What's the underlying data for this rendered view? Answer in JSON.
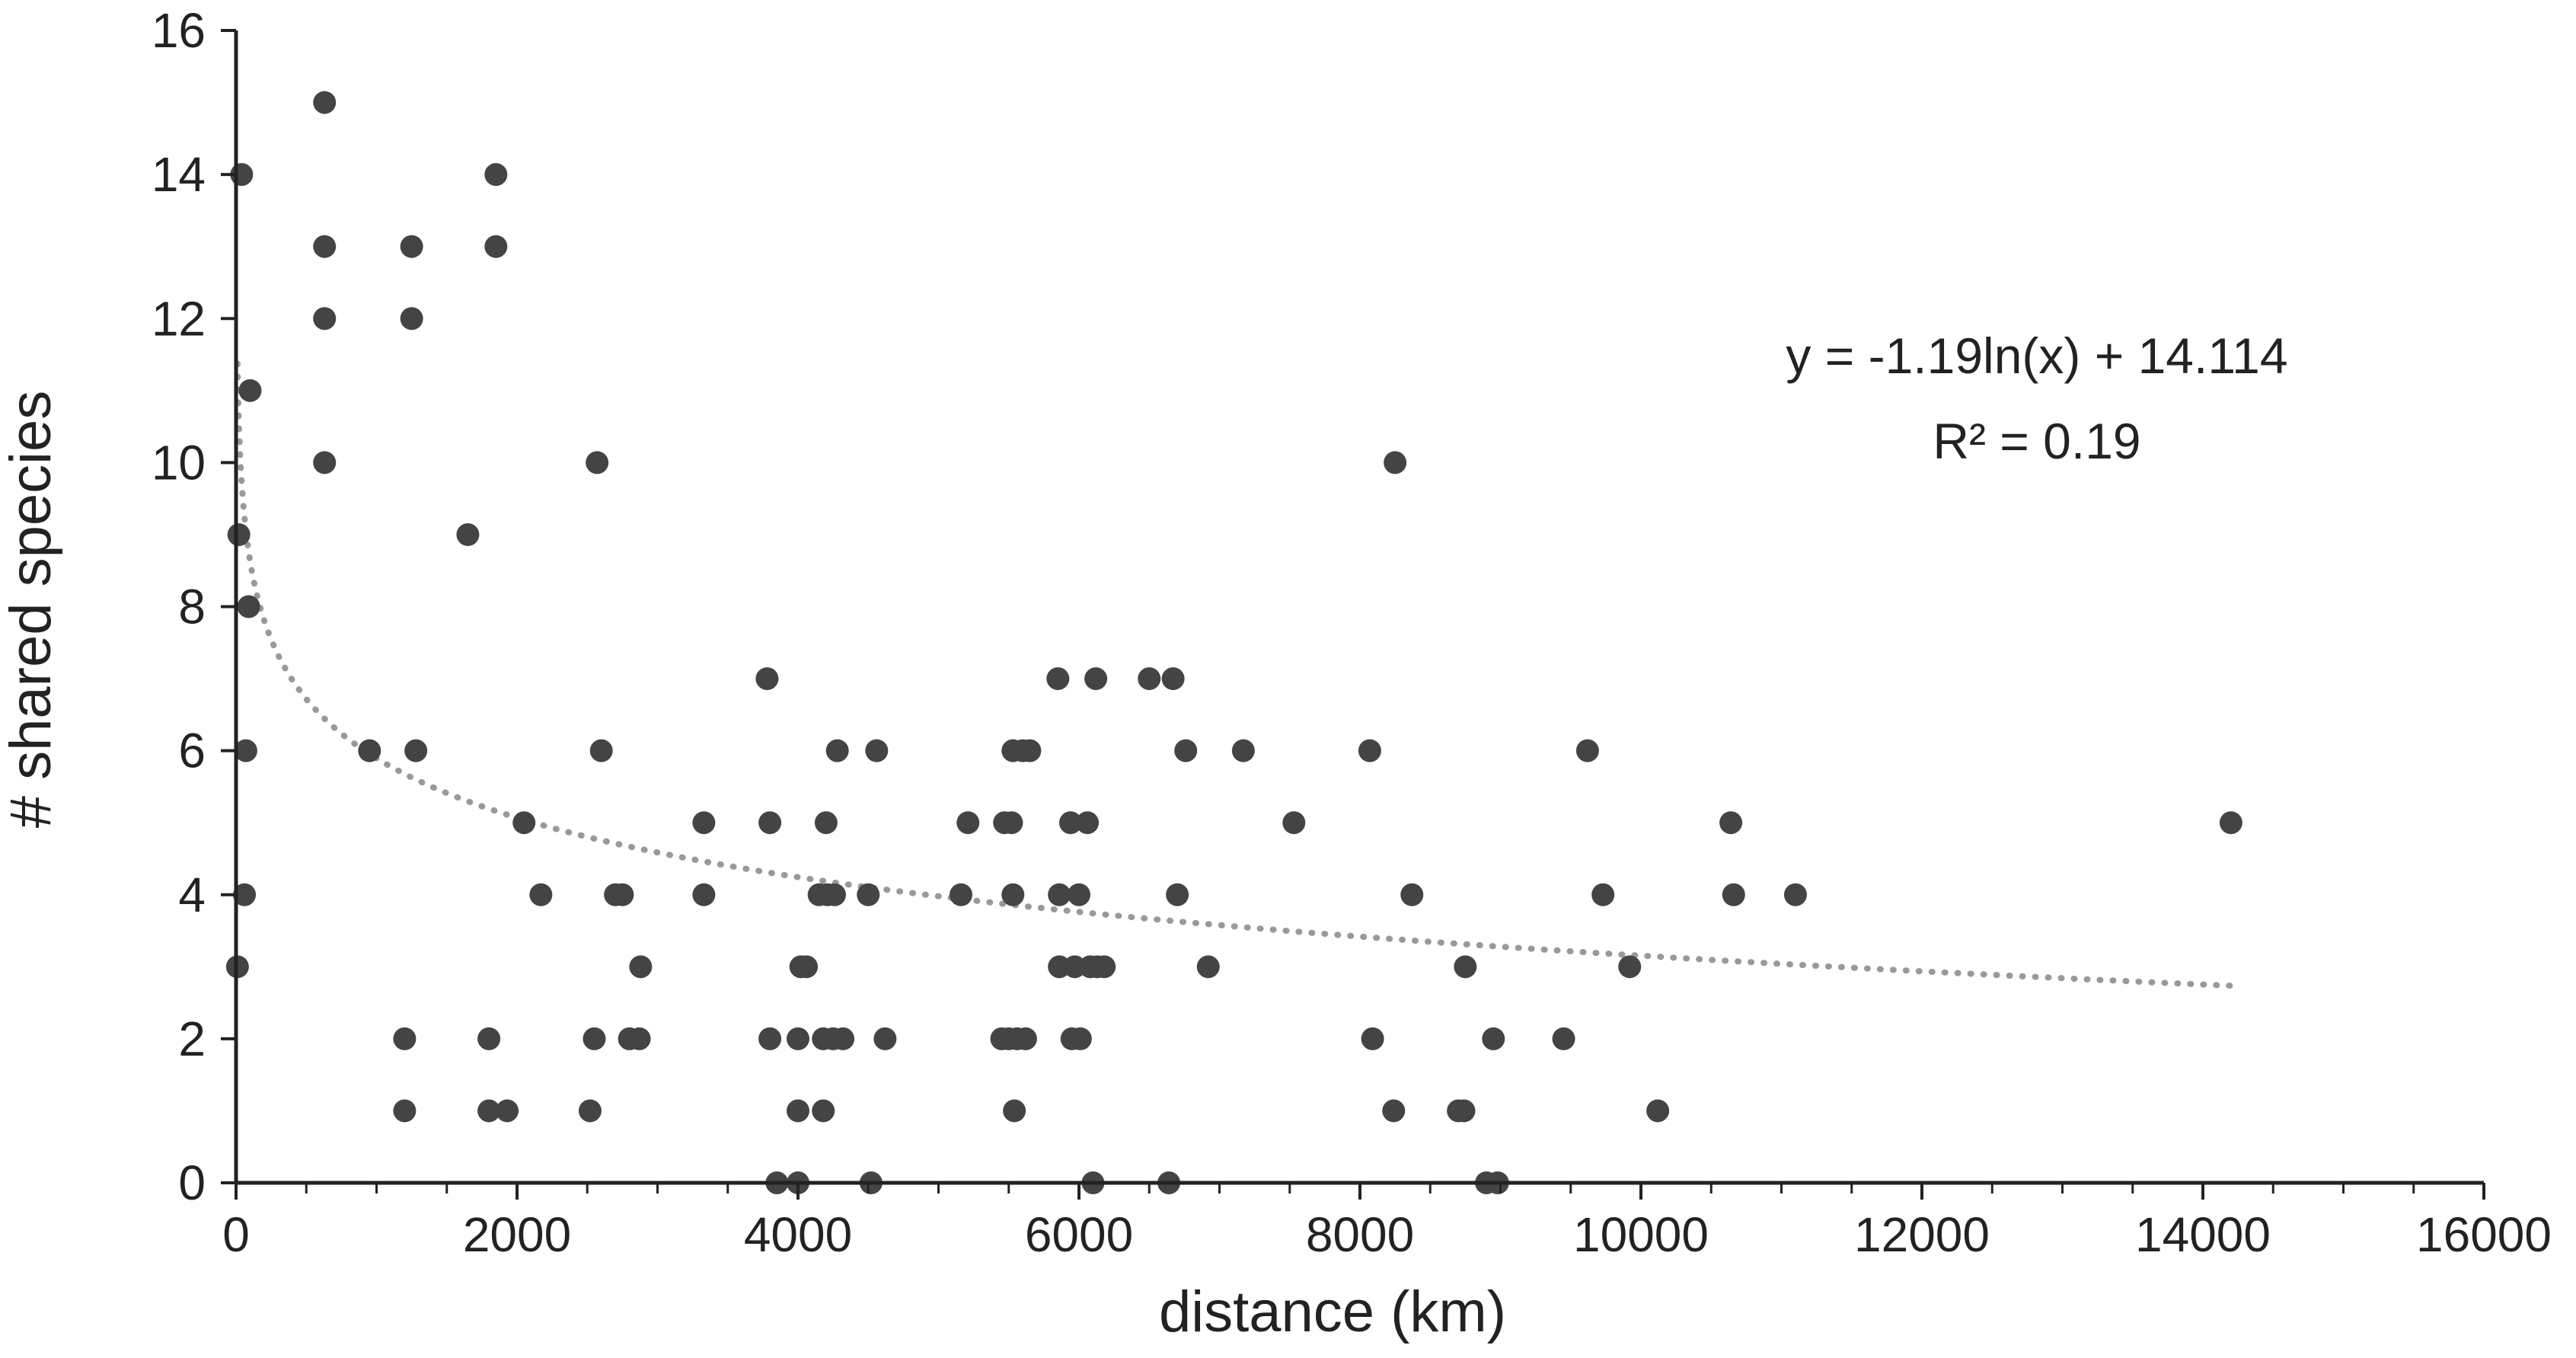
{
  "chart_data": {
    "type": "scatter",
    "title": "",
    "xlabel": "distance (km)",
    "ylabel": "# shared species",
    "xlim": [
      0,
      16000
    ],
    "ylim": [
      0,
      16
    ],
    "x_ticks": [
      0,
      2000,
      4000,
      6000,
      8000,
      10000,
      12000,
      14000,
      16000
    ],
    "y_ticks": [
      0,
      2,
      4,
      6,
      8,
      10,
      12,
      14,
      16
    ],
    "grid": false,
    "legend": "none",
    "colors": {
      "points": "#444444",
      "trendline": "#999999",
      "axes": "#222222"
    },
    "trendline": {
      "type": "logarithmic",
      "style": "dotted",
      "a": -1.19,
      "b": 14.114,
      "x_range": [
        10,
        14200
      ],
      "equation": "y = -1.19ln(x) + 14.114",
      "r2": "R² = 0.19"
    },
    "points": [
      {
        "x": 10,
        "y": 3
      },
      {
        "x": 20,
        "y": 9
      },
      {
        "x": 40,
        "y": 14
      },
      {
        "x": 60,
        "y": 4
      },
      {
        "x": 70,
        "y": 6
      },
      {
        "x": 90,
        "y": 8
      },
      {
        "x": 100,
        "y": 11
      },
      {
        "x": 630,
        "y": 15
      },
      {
        "x": 630,
        "y": 13
      },
      {
        "x": 630,
        "y": 12
      },
      {
        "x": 630,
        "y": 10
      },
      {
        "x": 950,
        "y": 6
      },
      {
        "x": 1200,
        "y": 2
      },
      {
        "x": 1200,
        "y": 1
      },
      {
        "x": 1250,
        "y": 13
      },
      {
        "x": 1250,
        "y": 12
      },
      {
        "x": 1280,
        "y": 6
      },
      {
        "x": 1650,
        "y": 9
      },
      {
        "x": 1800,
        "y": 2
      },
      {
        "x": 1800,
        "y": 1
      },
      {
        "x": 1850,
        "y": 14
      },
      {
        "x": 1850,
        "y": 13
      },
      {
        "x": 1930,
        "y": 1
      },
      {
        "x": 2050,
        "y": 5
      },
      {
        "x": 2170,
        "y": 4
      },
      {
        "x": 2520,
        "y": 1
      },
      {
        "x": 2550,
        "y": 2
      },
      {
        "x": 2570,
        "y": 10
      },
      {
        "x": 2600,
        "y": 6
      },
      {
        "x": 2700,
        "y": 4
      },
      {
        "x": 2750,
        "y": 4
      },
      {
        "x": 2800,
        "y": 2
      },
      {
        "x": 2870,
        "y": 2
      },
      {
        "x": 2880,
        "y": 3
      },
      {
        "x": 3330,
        "y": 5
      },
      {
        "x": 3330,
        "y": 4
      },
      {
        "x": 3780,
        "y": 7
      },
      {
        "x": 3800,
        "y": 5
      },
      {
        "x": 3800,
        "y": 2
      },
      {
        "x": 3850,
        "y": 0
      },
      {
        "x": 4000,
        "y": 2
      },
      {
        "x": 4000,
        "y": 1
      },
      {
        "x": 4000,
        "y": 0
      },
      {
        "x": 4020,
        "y": 3
      },
      {
        "x": 4060,
        "y": 3
      },
      {
        "x": 4150,
        "y": 4
      },
      {
        "x": 4180,
        "y": 2
      },
      {
        "x": 4180,
        "y": 1
      },
      {
        "x": 4200,
        "y": 5
      },
      {
        "x": 4210,
        "y": 4
      },
      {
        "x": 4250,
        "y": 2
      },
      {
        "x": 4260,
        "y": 4
      },
      {
        "x": 4280,
        "y": 6
      },
      {
        "x": 4320,
        "y": 2
      },
      {
        "x": 4500,
        "y": 4
      },
      {
        "x": 4520,
        "y": 0
      },
      {
        "x": 4560,
        "y": 6
      },
      {
        "x": 4620,
        "y": 2
      },
      {
        "x": 5160,
        "y": 4
      },
      {
        "x": 5210,
        "y": 5
      },
      {
        "x": 5450,
        "y": 2
      },
      {
        "x": 5470,
        "y": 5
      },
      {
        "x": 5500,
        "y": 2
      },
      {
        "x": 5520,
        "y": 5
      },
      {
        "x": 5530,
        "y": 4
      },
      {
        "x": 5530,
        "y": 6
      },
      {
        "x": 5540,
        "y": 1
      },
      {
        "x": 5560,
        "y": 2
      },
      {
        "x": 5600,
        "y": 6
      },
      {
        "x": 5620,
        "y": 2
      },
      {
        "x": 5650,
        "y": 6
      },
      {
        "x": 5850,
        "y": 7
      },
      {
        "x": 5860,
        "y": 3
      },
      {
        "x": 5860,
        "y": 4
      },
      {
        "x": 5940,
        "y": 5
      },
      {
        "x": 5950,
        "y": 2
      },
      {
        "x": 5970,
        "y": 3
      },
      {
        "x": 6000,
        "y": 4
      },
      {
        "x": 6010,
        "y": 2
      },
      {
        "x": 6060,
        "y": 5
      },
      {
        "x": 6080,
        "y": 3
      },
      {
        "x": 6100,
        "y": 0
      },
      {
        "x": 6120,
        "y": 7
      },
      {
        "x": 6130,
        "y": 3
      },
      {
        "x": 6180,
        "y": 3
      },
      {
        "x": 6500,
        "y": 7
      },
      {
        "x": 6640,
        "y": 0
      },
      {
        "x": 6670,
        "y": 7
      },
      {
        "x": 6700,
        "y": 4
      },
      {
        "x": 6760,
        "y": 6
      },
      {
        "x": 6920,
        "y": 3
      },
      {
        "x": 7170,
        "y": 6
      },
      {
        "x": 7530,
        "y": 5
      },
      {
        "x": 8070,
        "y": 6
      },
      {
        "x": 8090,
        "y": 2
      },
      {
        "x": 8240,
        "y": 1
      },
      {
        "x": 8250,
        "y": 10
      },
      {
        "x": 8370,
        "y": 4
      },
      {
        "x": 8700,
        "y": 1
      },
      {
        "x": 8740,
        "y": 1
      },
      {
        "x": 8750,
        "y": 3
      },
      {
        "x": 8900,
        "y": 0
      },
      {
        "x": 8950,
        "y": 2
      },
      {
        "x": 8980,
        "y": 0
      },
      {
        "x": 9450,
        "y": 2
      },
      {
        "x": 9620,
        "y": 6
      },
      {
        "x": 9730,
        "y": 4
      },
      {
        "x": 9920,
        "y": 3
      },
      {
        "x": 10120,
        "y": 1
      },
      {
        "x": 10640,
        "y": 5
      },
      {
        "x": 10660,
        "y": 4
      },
      {
        "x": 11100,
        "y": 4
      },
      {
        "x": 14200,
        "y": 5
      }
    ]
  }
}
